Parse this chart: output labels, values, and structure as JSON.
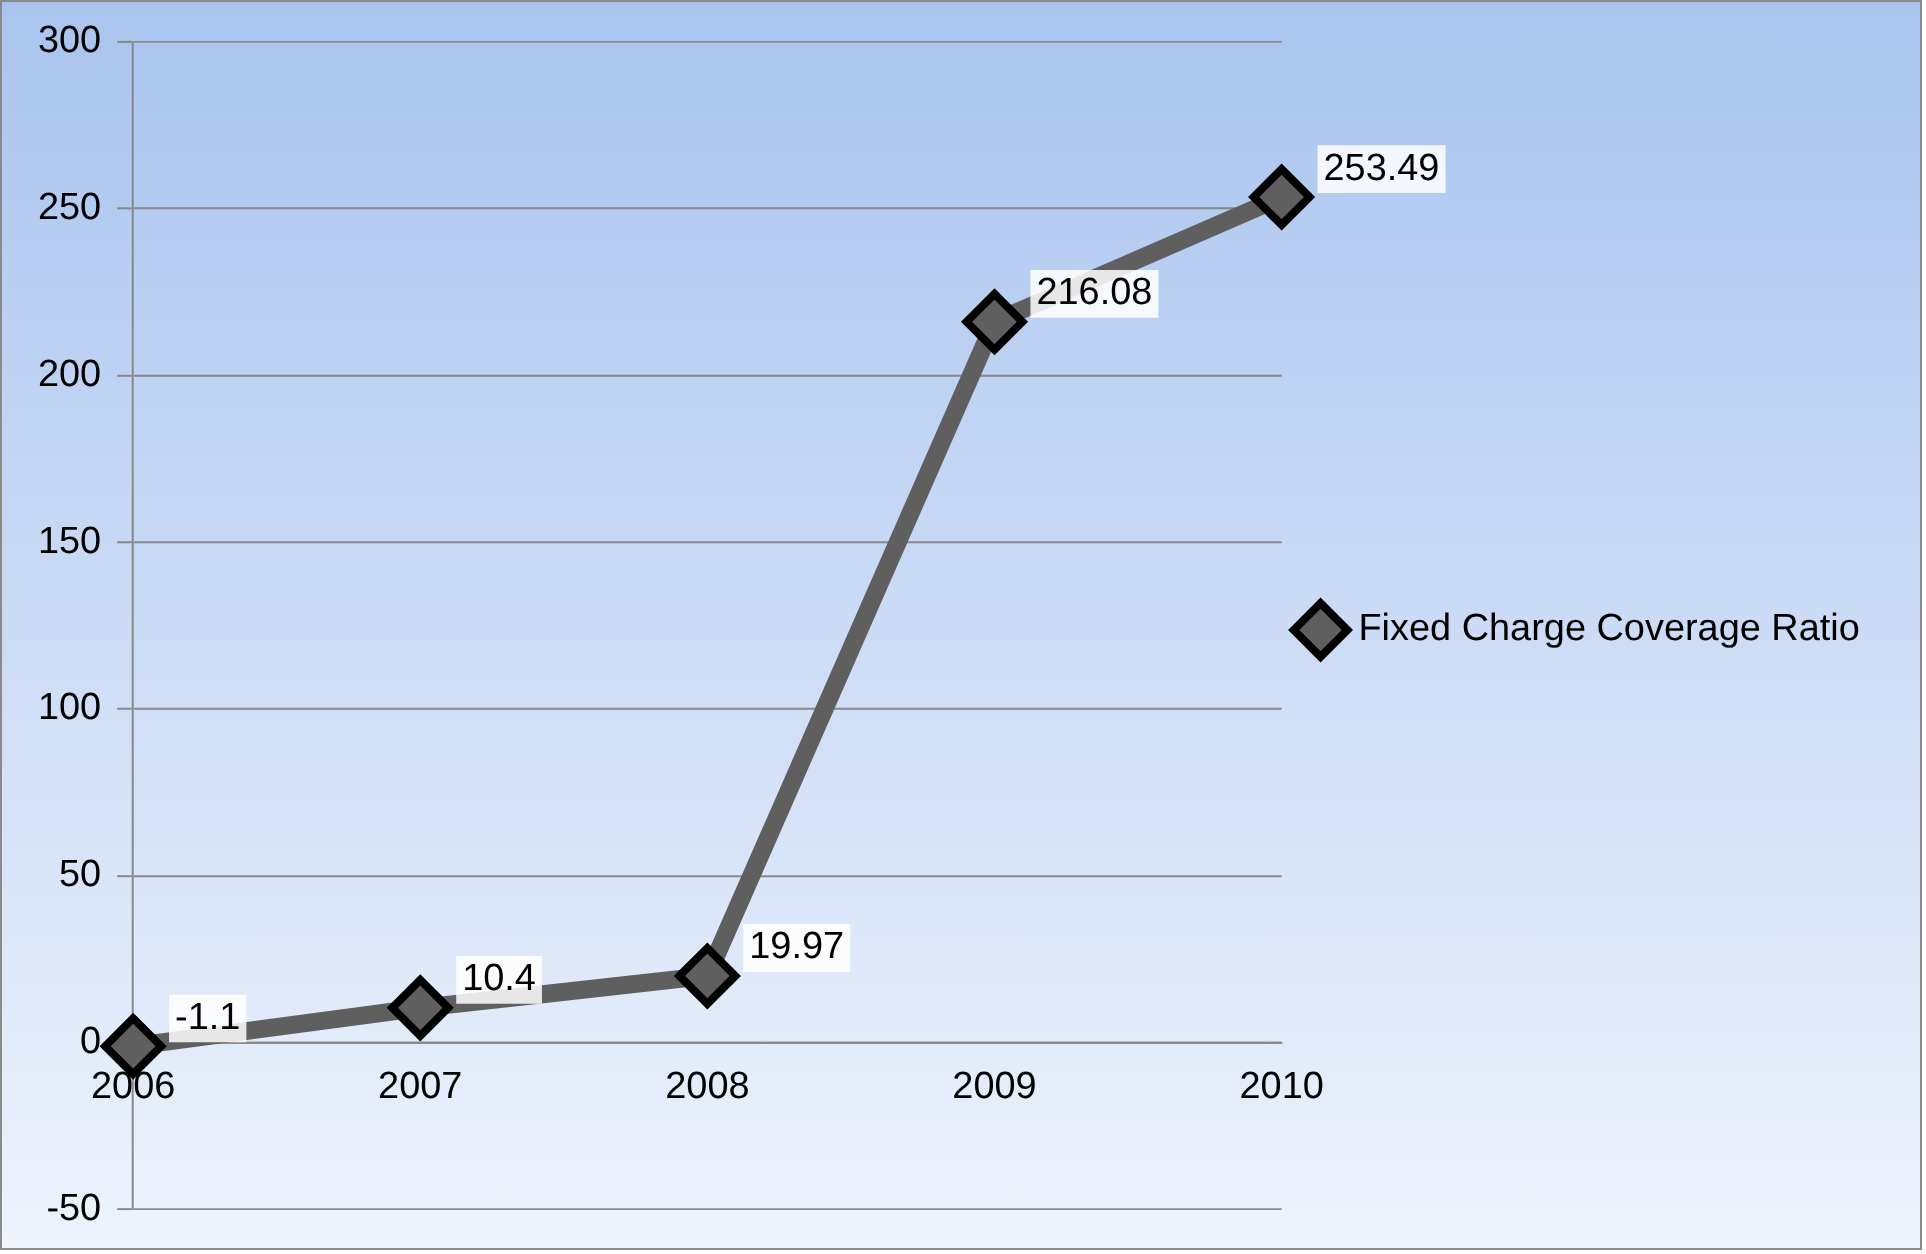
{
  "chart_data": {
    "type": "line",
    "categories": [
      "2006",
      "2007",
      "2008",
      "2009",
      "2010"
    ],
    "series": [
      {
        "name": "Fixed Charge Coverage Ratio",
        "color": "#5f5f5f",
        "values": [
          -1.1,
          10.4,
          19.97,
          216.08,
          253.49
        ]
      }
    ],
    "ylim": [
      -50,
      300
    ],
    "yticks": [
      -50,
      0,
      50,
      100,
      150,
      200,
      250,
      300
    ],
    "grid": "y",
    "legend": "right",
    "marker": "diamond",
    "line_style": "solid",
    "data_labels": true
  }
}
